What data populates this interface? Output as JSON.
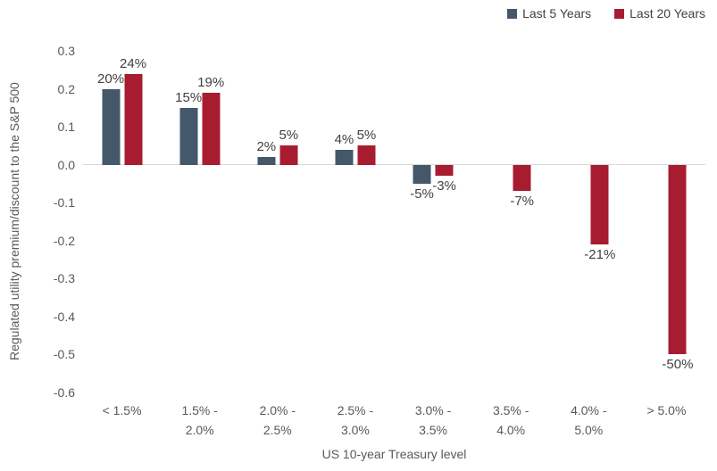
{
  "chart_data": {
    "type": "bar",
    "title": "",
    "xlabel": "US 10-year Treasury level",
    "ylabel": "Regulated utility premium/discount to the S&P 500",
    "categories": [
      "< 1.5%",
      "1.5% - 2.0%",
      "2.0% - 2.5%",
      "2.5% - 3.0%",
      "3.0% - 3.5%",
      "3.5% - 4.0%",
      "4.0% - 5.0%",
      "> 5.0%"
    ],
    "categories_display": [
      [
        "< 1.5%"
      ],
      [
        "1.5% -",
        "2.0%"
      ],
      [
        "2.0% -",
        "2.5%"
      ],
      [
        "2.5% -",
        "3.0%"
      ],
      [
        "3.0% -",
        "3.5%"
      ],
      [
        "3.5% -",
        "4.0%"
      ],
      [
        "4.0% -",
        "5.0%"
      ],
      [
        "> 5.0%"
      ]
    ],
    "series": [
      {
        "name": "Last 5 Years",
        "color": "#45576A",
        "values": [
          0.2,
          0.15,
          0.02,
          0.04,
          -0.05,
          null,
          null,
          null
        ],
        "labels": [
          "20%",
          "15%",
          "2%",
          "4%",
          "-5%",
          null,
          null,
          null
        ]
      },
      {
        "name": "Last 20 Years",
        "color": "#A81C30",
        "values": [
          0.24,
          0.19,
          0.05,
          0.05,
          -0.03,
          -0.07,
          -0.21,
          -0.5
        ],
        "labels": [
          "24%",
          "19%",
          "5%",
          "5%",
          "-3%",
          "-7%",
          "-21%",
          "-50%"
        ]
      }
    ],
    "ylim": [
      -0.6,
      0.3
    ],
    "ytick_step": 0.1,
    "yticks": [
      "0.3",
      "0.2",
      "0.1",
      "0.0",
      "-0.1",
      "-0.2",
      "-0.3",
      "-0.4",
      "-0.5",
      "-0.6"
    ],
    "grid": false,
    "legend_position": "top-right",
    "colors": {
      "axis_line": "#D9D9D9",
      "tick_label": "#595959",
      "data_label": "#404040",
      "legend_text": "#404040",
      "background": "#FFFFFF"
    }
  }
}
